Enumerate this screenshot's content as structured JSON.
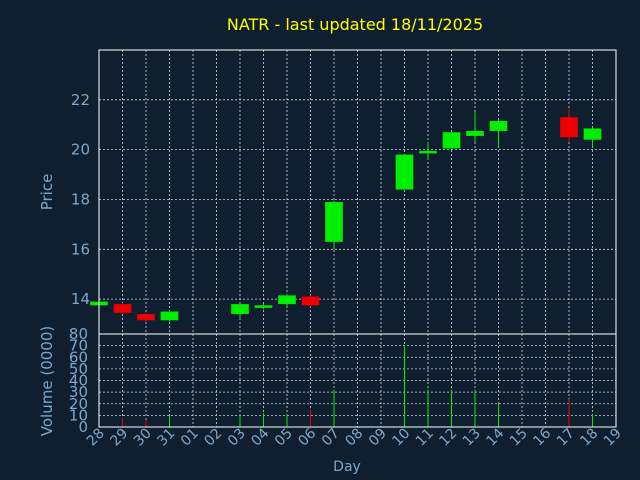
{
  "chart_data": {
    "type": "candlestick",
    "title": "NATR - last updated 18/11/2025",
    "xlabel": "Day",
    "ylabel_price": "Price",
    "ylabel_volume": "Volume (0000)",
    "price_ylim": [
      12.6,
      24.0
    ],
    "price_ticks": [
      14,
      16,
      18,
      20,
      22
    ],
    "volume_ylim": [
      0,
      80
    ],
    "volume_ticks": [
      0,
      10,
      20,
      30,
      40,
      50,
      60,
      70,
      80
    ],
    "x_ticks": [
      "28",
      "29",
      "30",
      "31",
      "01",
      "02",
      "03",
      "04",
      "05",
      "06",
      "07",
      "08",
      "09",
      "10",
      "11",
      "12",
      "13",
      "14",
      "15",
      "16",
      "17",
      "18",
      "19"
    ],
    "grid": true,
    "colors": {
      "up": "#00ee00",
      "down": "#ee0000",
      "background": "#0f1f30",
      "title": "#ffff00",
      "axis_text": "#7fa6c9"
    },
    "candles": [
      {
        "day": "28",
        "idx": 0,
        "open": 13.75,
        "high": 13.9,
        "low": 13.7,
        "close": 13.9,
        "volume": 5
      },
      {
        "day": "29",
        "idx": 1,
        "open": 13.8,
        "high": 13.85,
        "low": 13.4,
        "close": 13.45,
        "volume": 8
      },
      {
        "day": "30",
        "idx": 2,
        "open": 13.4,
        "high": 13.45,
        "low": 13.1,
        "close": 13.15,
        "volume": 6
      },
      {
        "day": "31",
        "idx": 3,
        "open": 13.15,
        "high": 13.55,
        "low": 13.1,
        "close": 13.5,
        "volume": 10
      },
      {
        "day": "03",
        "idx": 6,
        "open": 13.4,
        "high": 13.8,
        "low": 13.2,
        "close": 13.8,
        "volume": 11
      },
      {
        "day": "04",
        "idx": 7,
        "open": 13.65,
        "high": 13.8,
        "low": 13.6,
        "close": 13.75,
        "volume": 12
      },
      {
        "day": "05",
        "idx": 8,
        "open": 13.8,
        "high": 14.2,
        "low": 13.7,
        "close": 14.15,
        "volume": 11
      },
      {
        "day": "06",
        "idx": 9,
        "open": 14.1,
        "high": 14.15,
        "low": 13.7,
        "close": 13.75,
        "volume": 15
      },
      {
        "day": "07",
        "idx": 10,
        "open": 16.3,
        "high": 17.95,
        "low": 16.0,
        "close": 17.9,
        "volume": 32
      },
      {
        "day": "10",
        "idx": 13,
        "open": 18.4,
        "high": 19.8,
        "low": 18.4,
        "close": 19.8,
        "volume": 70
      },
      {
        "day": "11",
        "idx": 14,
        "open": 19.85,
        "high": 20.3,
        "low": 19.6,
        "close": 19.95,
        "volume": 32
      },
      {
        "day": "12",
        "idx": 15,
        "open": 20.05,
        "high": 20.7,
        "low": 20.0,
        "close": 20.7,
        "volume": 32
      },
      {
        "day": "13",
        "idx": 16,
        "open": 20.55,
        "high": 21.5,
        "low": 20.3,
        "close": 20.75,
        "volume": 32
      },
      {
        "day": "14",
        "idx": 17,
        "open": 20.75,
        "high": 21.2,
        "low": 20.1,
        "close": 21.15,
        "volume": 21
      },
      {
        "day": "17",
        "idx": 20,
        "open": 21.3,
        "high": 21.65,
        "low": 20.3,
        "close": 20.5,
        "volume": 24
      },
      {
        "day": "18",
        "idx": 21,
        "open": 20.4,
        "high": 20.9,
        "low": 20.1,
        "close": 20.85,
        "volume": 11
      }
    ]
  }
}
